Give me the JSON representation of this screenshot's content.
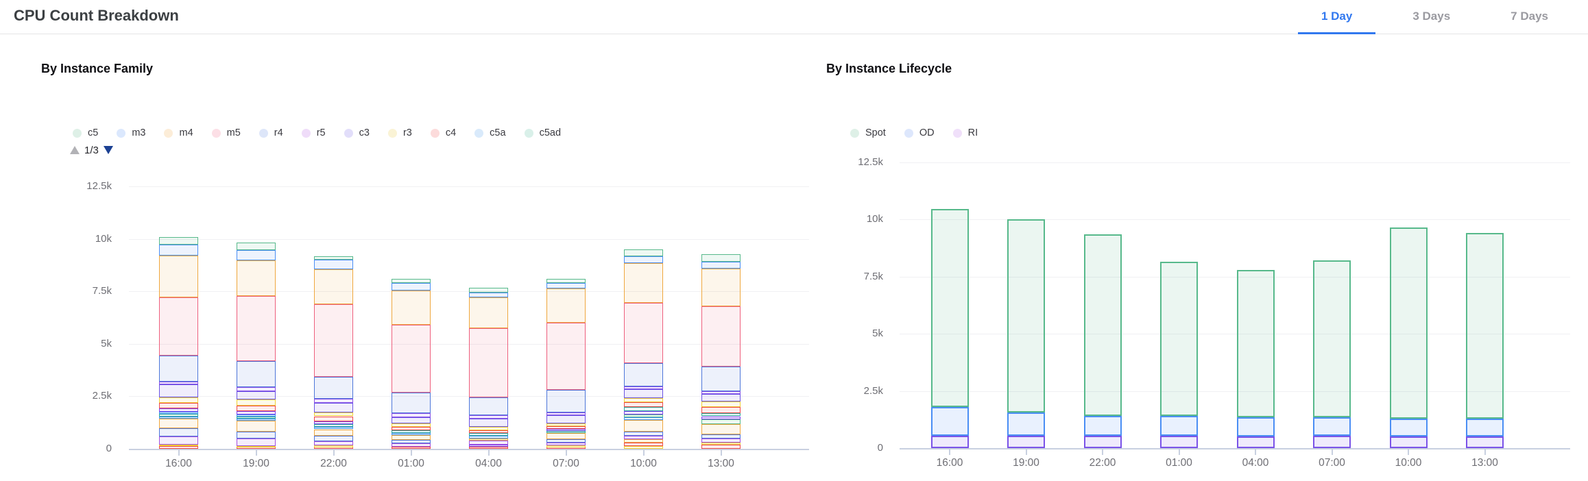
{
  "header": {
    "title": "CPU Count Breakdown",
    "tabs": [
      {
        "label": "1 Day",
        "active": true
      },
      {
        "label": "3 Days",
        "active": false
      },
      {
        "label": "7 Days",
        "active": false
      }
    ],
    "active_tab_color": "#3178ef",
    "inactive_tab_color": "#9a9aa0"
  },
  "charts": {
    "family": {
      "title": "By Instance Family",
      "legend_page": "1/3",
      "pager_up_color": "#b2b2b6",
      "pager_down_color": "#1c4193"
    },
    "lifecycle": {
      "title": "By Instance Lifecycle"
    }
  },
  "chart_data": [
    {
      "type": "bar",
      "stacked": true,
      "title": "By Instance Family",
      "categories": [
        "16:00",
        "19:00",
        "22:00",
        "01:00",
        "04:00",
        "07:00",
        "10:00",
        "13:00"
      ],
      "ylim": [
        0,
        12500
      ],
      "y_ticks": [
        0,
        2500,
        5000,
        7500,
        10000,
        12500
      ],
      "y_tick_labels": [
        "0",
        "2.5k",
        "5k",
        "7.5k",
        "10k",
        "12.5k"
      ],
      "grid": true,
      "legend_position": "top",
      "legend_visible": [
        "c5",
        "m3",
        "m4",
        "m5",
        "r4",
        "r5",
        "c3",
        "r3",
        "c4",
        "c5a",
        "c5ad"
      ],
      "legend_pages_total": 3,
      "legend_dot_colors": {
        "c5": "#def0e7",
        "m3": "#dbe8fd",
        "m4": "#fcedd8",
        "m5": "#fcdfe6",
        "r4": "#dde6f9",
        "r5": "#efdcf9",
        "c3": "#e2defa",
        "r3": "#faf3d5",
        "c4": "#fcdbdb",
        "c5a": "#d9eafb",
        "c5ad": "#d9f0e9"
      },
      "series_colors": {
        "c5": "#57b98b",
        "m3": "#4a8ef4",
        "m4": "#efa73e",
        "m5": "#ee5f7d",
        "r4": "#4d76da",
        "r5": "#8a50e8",
        "c3": "#6a53e4",
        "r3": "#f0cf35",
        "c4": "#ee4848",
        "c5a": "#3f92f0",
        "c5ad": "#2ba89d",
        "p2-violet": "#7d3ff0",
        "p2-blue": "#3f92f0",
        "p2-orange": "#efa73e",
        "p2-indigo": "#4d76da",
        "p2-magenta": "#a14fe0",
        "p2-yellow": "#f0cf35",
        "p2-red": "#ee4848",
        "p2-green": "#57b98b"
      },
      "bars": [
        {
          "category": "16:00",
          "total": 10100,
          "segments_top_to_bottom": [
            [
              "c5",
              380
            ],
            [
              "m3",
              530
            ],
            [
              "m4",
              1980
            ],
            [
              "m5",
              2780
            ],
            [
              "r4",
              1220
            ],
            [
              "r5",
              140
            ],
            [
              "c3",
              610
            ],
            [
              "r3",
              270
            ],
            [
              "c4",
              270
            ],
            [
              "p2-violet",
              160
            ],
            [
              "c5a",
              100
            ],
            [
              "c5ad",
              130
            ],
            [
              "p2-blue",
              90
            ],
            [
              "p2-orange",
              450
            ],
            [
              "p2-indigo",
              400
            ],
            [
              "p2-magenta",
              380
            ],
            [
              "p2-yellow",
              70
            ],
            [
              "p2-red",
              140
            ]
          ]
        },
        {
          "category": "19:00",
          "total": 9830,
          "segments_top_to_bottom": [
            [
              "c5",
              350
            ],
            [
              "m3",
              510
            ],
            [
              "m4",
              1700
            ],
            [
              "m5",
              3080
            ],
            [
              "r4",
              1250
            ],
            [
              "r5",
              190
            ],
            [
              "c3",
              400
            ],
            [
              "r3",
              290
            ],
            [
              "c4",
              270
            ],
            [
              "p2-violet",
              160
            ],
            [
              "c5a",
              110
            ],
            [
              "c5ad",
              100
            ],
            [
              "p2-blue",
              80
            ],
            [
              "p2-orange",
              510
            ],
            [
              "p2-indigo",
              350
            ],
            [
              "p2-magenta",
              340
            ],
            [
              "p2-yellow",
              50
            ],
            [
              "p2-red",
              90
            ]
          ]
        },
        {
          "category": "22:00",
          "total": 9160,
          "segments_top_to_bottom": [
            [
              "c5",
              160
            ],
            [
              "m3",
              450
            ],
            [
              "m4",
              1660
            ],
            [
              "m5",
              3470
            ],
            [
              "r4",
              1050
            ],
            [
              "r5",
              180
            ],
            [
              "c3",
              460
            ],
            [
              "r3",
              180
            ],
            [
              "c4",
              240
            ],
            [
              "p2-violet",
              130
            ],
            [
              "c5ad",
              140
            ],
            [
              "c5a",
              110
            ],
            [
              "p2-orange",
              320
            ],
            [
              "p2-indigo",
              260
            ],
            [
              "p2-magenta",
              190
            ],
            [
              "p2-yellow",
              60
            ],
            [
              "p2-red",
              100
            ]
          ]
        },
        {
          "category": "01:00",
          "total": 8090,
          "segments_top_to_bottom": [
            [
              "c5",
              180
            ],
            [
              "m3",
              380
            ],
            [
              "m4",
              1620
            ],
            [
              "m5",
              3250
            ],
            [
              "r4",
              970
            ],
            [
              "r5",
              180
            ],
            [
              "c3",
              300
            ],
            [
              "r3",
              180
            ],
            [
              "c4",
              140
            ],
            [
              "c5ad",
              140
            ],
            [
              "c5a",
              110
            ],
            [
              "p2-orange",
              210
            ],
            [
              "p2-indigo",
              160
            ],
            [
              "p2-magenta",
              160
            ],
            [
              "p2-red",
              110
            ]
          ]
        },
        {
          "category": "04:00",
          "total": 7660,
          "segments_top_to_bottom": [
            [
              "c5",
              210
            ],
            [
              "m3",
              240
            ],
            [
              "m4",
              1470
            ],
            [
              "m5",
              3280
            ],
            [
              "r4",
              860
            ],
            [
              "r5",
              160
            ],
            [
              "c3",
              400
            ],
            [
              "r3",
              150
            ],
            [
              "c4",
              140
            ],
            [
              "c5ad",
              140
            ],
            [
              "c5a",
              110
            ],
            [
              "p2-orange",
              120
            ],
            [
              "p2-magenta",
              170
            ],
            [
              "p2-violet",
              100
            ],
            [
              "p2-red",
              110
            ]
          ]
        },
        {
          "category": "07:00",
          "total": 8090,
          "segments_top_to_bottom": [
            [
              "c5",
              180
            ],
            [
              "m3",
              270
            ],
            [
              "m4",
              1620
            ],
            [
              "m5",
              3200
            ],
            [
              "r4",
              1090
            ],
            [
              "r5",
              130
            ],
            [
              "c3",
              400
            ],
            [
              "r3",
              110
            ],
            [
              "c4",
              130
            ],
            [
              "p2-violet",
              110
            ],
            [
              "c5ad",
              100
            ],
            [
              "p2-orange",
              280
            ],
            [
              "p2-indigo",
              180
            ],
            [
              "p2-magenta",
              140
            ],
            [
              "p2-yellow",
              50
            ],
            [
              "p2-red",
              100
            ]
          ]
        },
        {
          "category": "10:00",
          "total": 9510,
          "segments_top_to_bottom": [
            [
              "c5",
              350
            ],
            [
              "m3",
              320
            ],
            [
              "m4",
              1890
            ],
            [
              "m5",
              2860
            ],
            [
              "r4",
              1130
            ],
            [
              "r5",
              130
            ],
            [
              "c3",
              400
            ],
            [
              "r3",
              220
            ],
            [
              "c4",
              230
            ],
            [
              "c5ad",
              190
            ],
            [
              "p2-violet",
              160
            ],
            [
              "p2-green",
              130
            ],
            [
              "c5a",
              140
            ],
            [
              "p2-orange",
              560
            ],
            [
              "p2-indigo",
              190
            ],
            [
              "p2-magenta",
              150
            ],
            [
              "p2-orange",
              170
            ],
            [
              "p2-red",
              150
            ],
            [
              "p2-yellow",
              140
            ]
          ]
        },
        {
          "category": "13:00",
          "total": 9260,
          "segments_top_to_bottom": [
            [
              "c5",
              340
            ],
            [
              "m3",
              340
            ],
            [
              "m4",
              1780
            ],
            [
              "m5",
              2880
            ],
            [
              "r4",
              1170
            ],
            [
              "r5",
              150
            ],
            [
              "c3",
              360
            ],
            [
              "r3",
              260
            ],
            [
              "c4",
              270
            ],
            [
              "c5ad",
              160
            ],
            [
              "p2-violet",
              160
            ],
            [
              "p2-green",
              210
            ],
            [
              "p2-orange",
              480
            ],
            [
              "p2-indigo",
              200
            ],
            [
              "p2-magenta",
              210
            ],
            [
              "p2-yellow",
              90
            ],
            [
              "p2-red",
              200
            ]
          ]
        }
      ]
    },
    {
      "type": "bar",
      "stacked": true,
      "title": "By Instance Lifecycle",
      "categories": [
        "16:00",
        "19:00",
        "22:00",
        "01:00",
        "04:00",
        "07:00",
        "10:00",
        "13:00"
      ],
      "ylim": [
        0,
        12500
      ],
      "y_ticks": [
        0,
        2500,
        5000,
        7500,
        10000,
        12500
      ],
      "y_tick_labels": [
        "0",
        "2.5k",
        "5k",
        "7.5k",
        "10k",
        "12.5k"
      ],
      "grid": true,
      "legend_position": "top",
      "legend_dot_colors": {
        "Spot": "#def0e7",
        "OD": "#dde7fc",
        "RI": "#f0e0fa"
      },
      "series_colors": {
        "Spot": "#57b98b",
        "OD": "#4a8ef4",
        "RI": "#7a53e8"
      },
      "stack_order_bottom_to_top": [
        "RI",
        "OD",
        "Spot"
      ],
      "series": [
        {
          "name": "Spot",
          "values": [
            8650,
            8450,
            7950,
            6750,
            6450,
            6850,
            8350,
            8100
          ]
        },
        {
          "name": "OD",
          "values": [
            1250,
            1000,
            850,
            850,
            850,
            800,
            800,
            800
          ]
        },
        {
          "name": "RI",
          "values": [
            550,
            550,
            550,
            550,
            500,
            550,
            500,
            500
          ]
        }
      ],
      "totals": [
        10450,
        10000,
        9350,
        8150,
        7800,
        8200,
        9650,
        9400
      ]
    }
  ]
}
